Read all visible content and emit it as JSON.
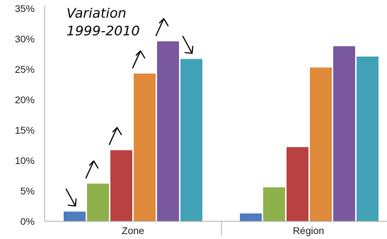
{
  "chart_data": {
    "type": "bar",
    "categories": [
      "Zone",
      "Région"
    ],
    "series": [
      {
        "color": "#4f7bbf",
        "values": [
          1.6,
          1.3
        ]
      },
      {
        "color": "#8fb14b",
        "values": [
          6.2,
          5.6
        ]
      },
      {
        "color": "#b94240",
        "values": [
          11.7,
          12.2
        ]
      },
      {
        "color": "#e08a3c",
        "values": [
          24.3,
          25.3
        ]
      },
      {
        "color": "#7a58a0",
        "values": [
          29.6,
          28.8
        ]
      },
      {
        "color": "#41a2b7",
        "values": [
          26.7,
          27.1
        ]
      }
    ],
    "yticks": [
      "0%",
      "5%",
      "10%",
      "15%",
      "20%",
      "25%",
      "30%",
      "35%"
    ],
    "ylim": [
      0,
      35
    ],
    "unit": "%",
    "grid": false,
    "annotation": {
      "line1": "Variation",
      "line2": "1999-2010",
      "arrow_directions": [
        "down",
        "up",
        "up",
        "up",
        "up",
        "down"
      ]
    }
  }
}
